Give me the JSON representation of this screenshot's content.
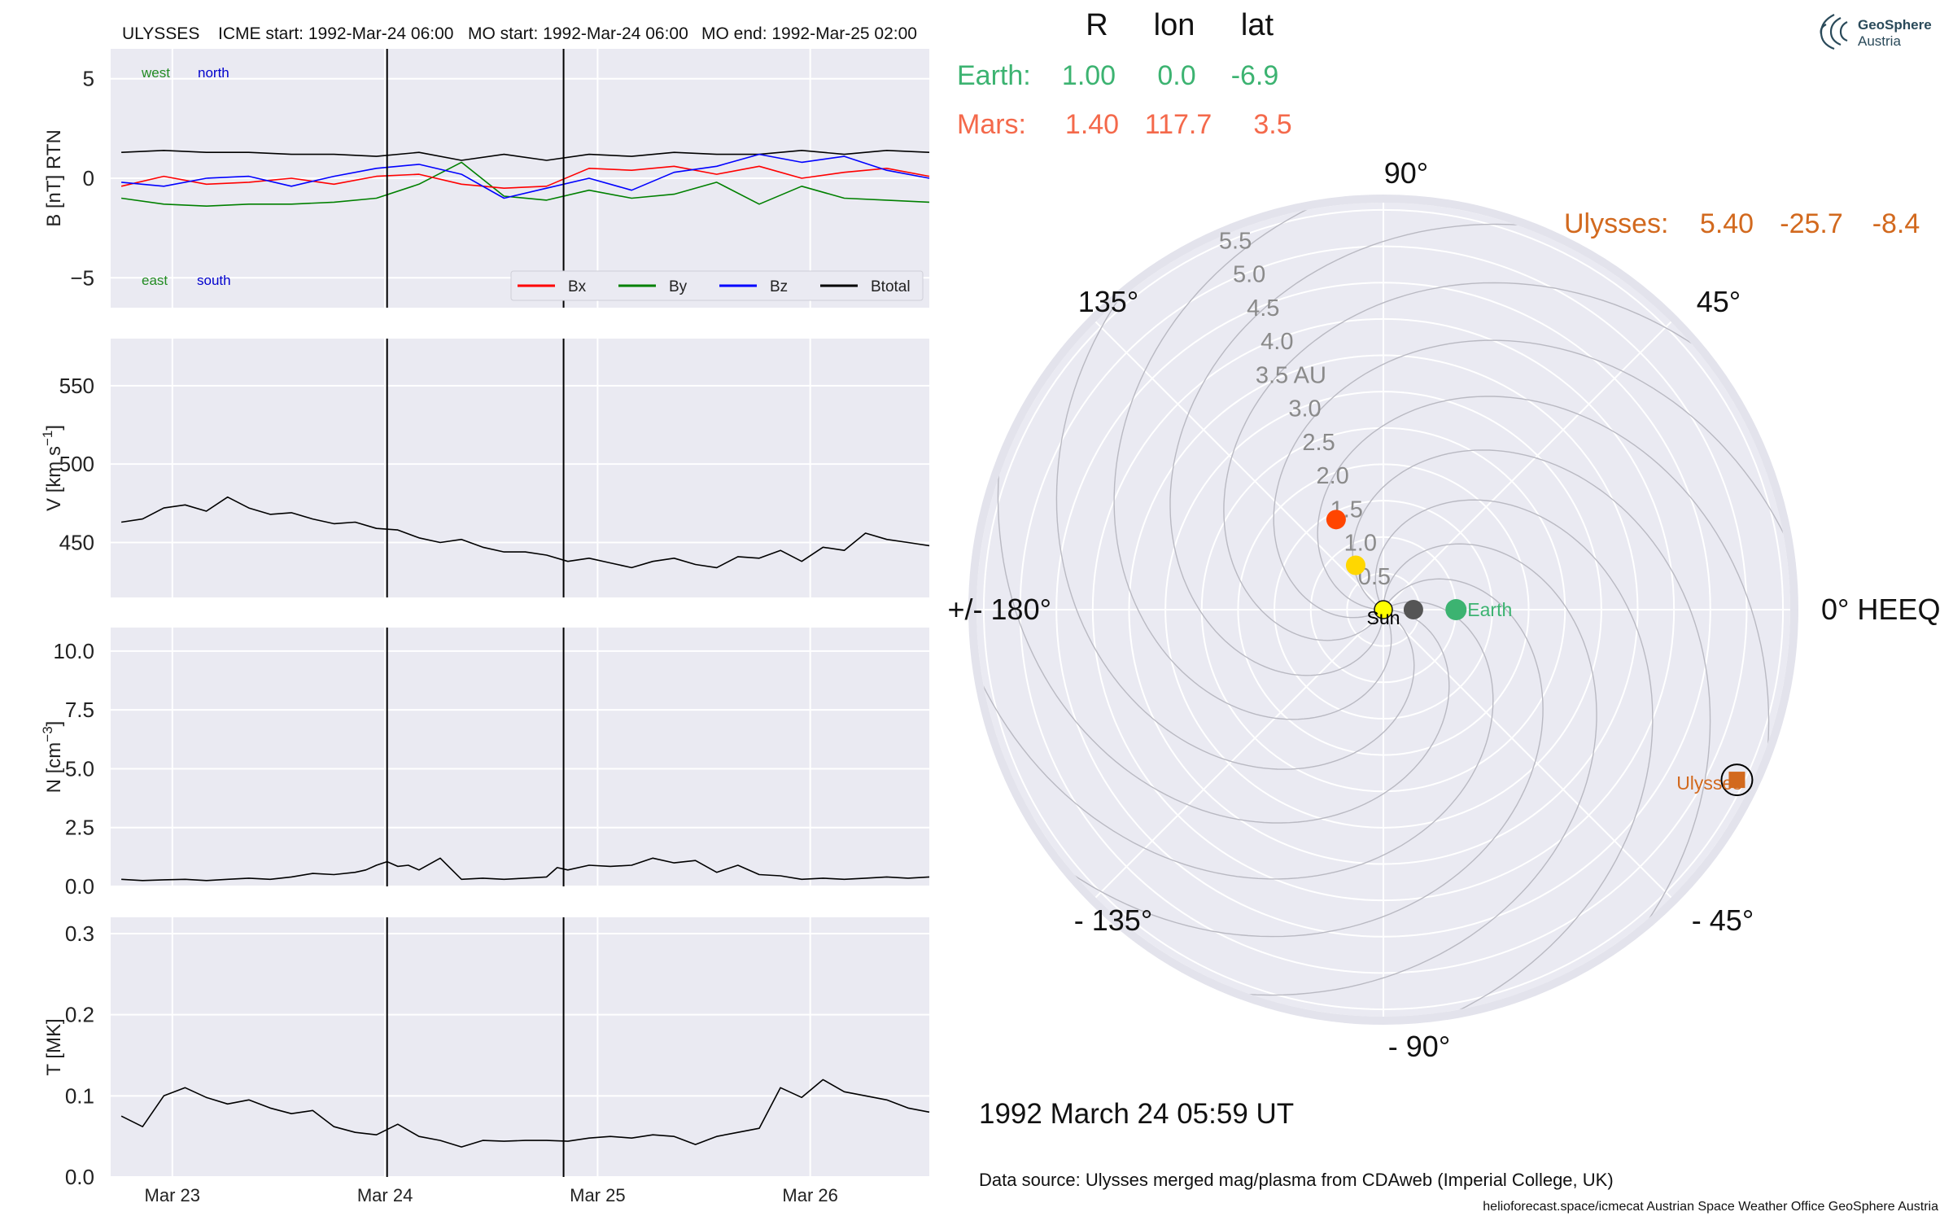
{
  "header": {
    "spacecraft": "ULYSSES",
    "icme_start": "ICME start: 1992-Mar-24 06:00",
    "mo_start": "MO start: 1992-Mar-24 06:00",
    "mo_end": "MO end: 1992-Mar-25 02:00"
  },
  "logo": {
    "line1": "GeoSphere",
    "line2": "Austria"
  },
  "positions_table": {
    "columns": [
      "R",
      "lon",
      "lat"
    ],
    "rows": [
      {
        "name": "Earth:",
        "r": "1.00",
        "lon": "0.0",
        "lat": "-6.9",
        "color": "#3cb371"
      },
      {
        "name": "Mars:",
        "r": "1.40",
        "lon": "117.7",
        "lat": "3.5",
        "color": "#f4694b"
      },
      {
        "name": "Ulysses:",
        "r": "5.40",
        "lon": "-25.7",
        "lat": "-8.4",
        "color": "#d2691e"
      }
    ]
  },
  "timestamp": "1992 March 24  05:59 UT",
  "data_source": "Data source: Ulysses merged mag/plasma from CDAweb (Imperial College, UK)",
  "footer": "helioforecast.space/icmecat   Austrian Space Weather Office   GeoSphere Austria",
  "chart_data": [
    {
      "type": "line",
      "ylabel": "B [nT] RTN",
      "ylim": [
        -6.5,
        6.5
      ],
      "yticks": [
        5,
        0,
        -5
      ],
      "ytick_labels": [
        "5",
        "0",
        "−5"
      ],
      "annotations": [
        {
          "text": "west",
          "color": "#228B22"
        },
        {
          "text": "north",
          "color": "#0000cd"
        },
        {
          "text": "east",
          "color": "#228B22"
        },
        {
          "text": "south",
          "color": "#0000cd"
        }
      ],
      "legend": {
        "placement": "lower-right",
        "entries": [
          {
            "name": "Bx",
            "color": "#ff0000"
          },
          {
            "name": "By",
            "color": "#008000"
          },
          {
            "name": "Bz",
            "color": "#0000ff"
          },
          {
            "name": "Btotal",
            "color": "#000000"
          }
        ]
      },
      "x": [
        0,
        0.2,
        0.4,
        0.6,
        0.8,
        1.0,
        1.2,
        1.4,
        1.6,
        1.8,
        2.0,
        2.2,
        2.4,
        2.6,
        2.8,
        3.0,
        3.2,
        3.4,
        3.6,
        3.8
      ],
      "series": [
        {
          "name": "Btotal",
          "color": "#000000",
          "values": [
            1.3,
            1.4,
            1.3,
            1.3,
            1.2,
            1.2,
            1.1,
            1.3,
            0.9,
            1.2,
            0.9,
            1.2,
            1.1,
            1.3,
            1.2,
            1.2,
            1.4,
            1.2,
            1.4,
            1.3
          ]
        },
        {
          "name": "By",
          "color": "#008000",
          "values": [
            -1.0,
            -1.3,
            -1.4,
            -1.3,
            -1.3,
            -1.2,
            -1.0,
            -0.3,
            0.8,
            -0.9,
            -1.1,
            -0.6,
            -1.0,
            -0.8,
            -0.2,
            -1.3,
            -0.4,
            -1.0,
            -1.1,
            -1.2
          ]
        },
        {
          "name": "Bx",
          "color": "#ff0000",
          "values": [
            -0.4,
            0.1,
            -0.3,
            -0.2,
            0.0,
            -0.3,
            0.1,
            0.2,
            -0.3,
            -0.5,
            -0.4,
            0.5,
            0.4,
            0.6,
            0.2,
            0.6,
            0.0,
            0.3,
            0.5,
            0.1
          ]
        },
        {
          "name": "Bz",
          "color": "#0000ff",
          "values": [
            -0.2,
            -0.4,
            0.0,
            0.1,
            -0.4,
            0.1,
            0.5,
            0.7,
            0.2,
            -1.0,
            -0.5,
            0.0,
            -0.6,
            0.3,
            0.6,
            1.2,
            0.8,
            1.1,
            0.4,
            0.0
          ]
        }
      ],
      "vlines": [
        1.25,
        2.08
      ]
    },
    {
      "type": "line",
      "ylabel": "V [km s",
      "ylabel_sup": "−1",
      "ylabel_end": "]",
      "ylim": [
        415,
        580
      ],
      "yticks": [
        550,
        500,
        450
      ],
      "ytick_labels": [
        "550",
        "500",
        "450"
      ],
      "x": [
        0,
        0.1,
        0.2,
        0.3,
        0.4,
        0.5,
        0.6,
        0.7,
        0.8,
        0.9,
        1.0,
        1.1,
        1.2,
        1.3,
        1.4,
        1.5,
        1.6,
        1.7,
        1.8,
        1.9,
        2.0,
        2.1,
        2.2,
        2.3,
        2.4,
        2.5,
        2.6,
        2.7,
        2.8,
        2.9,
        3.0,
        3.1,
        3.2,
        3.3,
        3.4,
        3.5,
        3.6,
        3.7,
        3.8
      ],
      "series": [
        {
          "name": "",
          "color": "#000000",
          "values": [
            463,
            465,
            472,
            474,
            470,
            479,
            472,
            468,
            469,
            465,
            462,
            463,
            459,
            458,
            453,
            450,
            452,
            447,
            444,
            444,
            442,
            438,
            440,
            437,
            434,
            438,
            440,
            436,
            434,
            441,
            440,
            445,
            438,
            447,
            445,
            456,
            452,
            450,
            448
          ]
        }
      ],
      "vlines": [
        1.25,
        2.08
      ]
    },
    {
      "type": "line",
      "ylabel": "N [cm",
      "ylabel_sup": "−3",
      "ylabel_end": "]",
      "ylim": [
        0,
        11
      ],
      "yticks": [
        10.0,
        7.5,
        5.0,
        2.5,
        0.0
      ],
      "ytick_labels": [
        "10.0",
        "7.5",
        "5.0",
        "2.5",
        "0.0"
      ],
      "x": [
        0,
        0.1,
        0.2,
        0.3,
        0.4,
        0.5,
        0.6,
        0.7,
        0.8,
        0.9,
        1.0,
        1.1,
        1.15,
        1.2,
        1.25,
        1.3,
        1.35,
        1.4,
        1.5,
        1.6,
        1.7,
        1.8,
        1.9,
        2.0,
        2.05,
        2.1,
        2.2,
        2.3,
        2.4,
        2.5,
        2.6,
        2.7,
        2.8,
        2.9,
        3.0,
        3.1,
        3.2,
        3.3,
        3.4,
        3.5,
        3.6,
        3.7,
        3.8
      ],
      "series": [
        {
          "name": "",
          "color": "#000000",
          "values": [
            0.3,
            0.25,
            0.28,
            0.3,
            0.25,
            0.3,
            0.35,
            0.3,
            0.4,
            0.55,
            0.5,
            0.6,
            0.7,
            0.9,
            1.05,
            0.85,
            0.9,
            0.7,
            1.2,
            0.3,
            0.35,
            0.3,
            0.35,
            0.4,
            0.8,
            0.7,
            0.9,
            0.85,
            0.9,
            1.2,
            1.0,
            1.1,
            0.6,
            0.9,
            0.5,
            0.45,
            0.3,
            0.35,
            0.3,
            0.35,
            0.4,
            0.35,
            0.4
          ]
        }
      ],
      "vlines": [
        1.25,
        2.08
      ]
    },
    {
      "type": "line",
      "ylabel": "T [MK]",
      "ylim": [
        0,
        0.32
      ],
      "yticks": [
        0.3,
        0.2,
        0.1,
        0.0
      ],
      "ytick_labels": [
        "0.3",
        "0.2",
        "0.1",
        "0.0"
      ],
      "x": [
        0,
        0.1,
        0.2,
        0.3,
        0.4,
        0.5,
        0.6,
        0.7,
        0.8,
        0.9,
        1.0,
        1.1,
        1.2,
        1.3,
        1.4,
        1.5,
        1.6,
        1.7,
        1.8,
        1.9,
        2.0,
        2.1,
        2.2,
        2.3,
        2.4,
        2.5,
        2.6,
        2.7,
        2.8,
        2.9,
        3.0,
        3.1,
        3.2,
        3.3,
        3.4,
        3.5,
        3.6,
        3.7,
        3.8
      ],
      "series": [
        {
          "name": "",
          "color": "#000000",
          "values": [
            0.075,
            0.062,
            0.1,
            0.11,
            0.098,
            0.09,
            0.095,
            0.085,
            0.078,
            0.082,
            0.062,
            0.055,
            0.052,
            0.065,
            0.05,
            0.045,
            0.037,
            0.045,
            0.044,
            0.045,
            0.045,
            0.044,
            0.048,
            0.05,
            0.048,
            0.052,
            0.05,
            0.04,
            0.05,
            0.055,
            0.06,
            0.11,
            0.098,
            0.12,
            0.105,
            0.1,
            0.095,
            0.085,
            0.08
          ]
        }
      ],
      "vlines": [
        1.25,
        2.08
      ],
      "xticks": [
        0.24,
        1.24,
        2.24,
        3.24
      ],
      "xtick_labels": [
        "Mar 23",
        "Mar 24",
        "Mar 25",
        "Mar 26"
      ]
    },
    {
      "type": "polar",
      "angle_labels": [
        "90°",
        "45°",
        "0° HEEQ",
        "- 45°",
        "- 90°",
        "- 135°",
        "+/- 180°",
        "135°"
      ],
      "r_labels": [
        "0.5",
        "1.0",
        "1.5",
        "2.0",
        "2.5",
        "3.0",
        "3.5 AU",
        "4.0",
        "4.5",
        "5.0",
        "5.5"
      ],
      "r_values": [
        0.5,
        1.0,
        1.5,
        2.0,
        2.5,
        3.0,
        3.5,
        4.0,
        4.5,
        5.0,
        5.5
      ],
      "rmax": 5.6,
      "points": [
        {
          "name": "Sun",
          "label": "Sun",
          "r": 0.0,
          "lon": 0,
          "color": "#ffff00"
        },
        {
          "name": "Earth",
          "label": "Earth",
          "r": 1.0,
          "lon": 0.0,
          "color": "#3cb371"
        },
        {
          "name": "Mercury",
          "label": "",
          "r": 0.38,
          "lon": 0,
          "color": "#555555"
        },
        {
          "name": "Venus",
          "label": "",
          "r": 0.72,
          "lon": 122,
          "color": "#ffd700"
        },
        {
          "name": "Mars",
          "label": "",
          "r": 1.4,
          "lon": 117.7,
          "color": "#ff4500"
        },
        {
          "name": "Ulysses",
          "label": "Ulysses",
          "r": 5.4,
          "lon": -25.7,
          "color": "#d2691e"
        }
      ],
      "grid": true
    }
  ]
}
